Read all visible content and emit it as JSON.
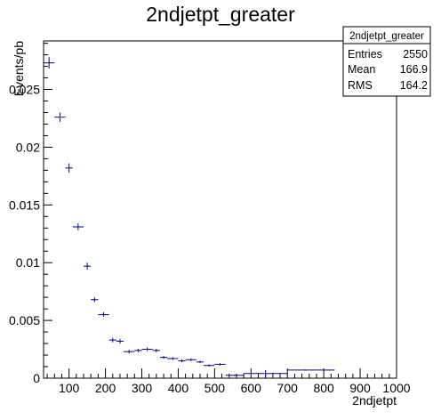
{
  "chart_data": {
    "type": "scatter",
    "title": "2ndjetpt_greater",
    "xlabel": "2ndjetpt",
    "ylabel": "Events/pb",
    "xlim": [
      30,
      1000
    ],
    "ylim": [
      0,
      0.0292
    ],
    "x_ticks": [
      100,
      200,
      300,
      400,
      500,
      600,
      700,
      800,
      900,
      1000
    ],
    "y_ticks": [
      0,
      0.005,
      0.01,
      0.015,
      0.02,
      0.025
    ],
    "x_tick_labels": [
      "100",
      "200",
      "300",
      "400",
      "500",
      "600",
      "700",
      "800",
      "900",
      "1000"
    ],
    "y_tick_labels": [
      "0",
      "0.005",
      "0.01",
      "0.015",
      "0.02",
      "0.025"
    ],
    "grid": false,
    "legend": "none",
    "series_color": "#00008b",
    "points": [
      {
        "x1": 30,
        "x2": 60,
        "y": 0.0273,
        "err": 0.0005
      },
      {
        "x1": 60,
        "x2": 90,
        "y": 0.0226,
        "err": 0.0004
      },
      {
        "x1": 90,
        "x2": 110,
        "y": 0.0182,
        "err": 0.0004
      },
      {
        "x1": 110,
        "x2": 140,
        "y": 0.0131,
        "err": 0.0003
      },
      {
        "x1": 140,
        "x2": 160,
        "y": 0.0097,
        "err": 0.0003
      },
      {
        "x1": 160,
        "x2": 180,
        "y": 0.0068,
        "err": 0.0002
      },
      {
        "x1": 180,
        "x2": 210,
        "y": 0.0055,
        "err": 0.0002
      },
      {
        "x1": 210,
        "x2": 230,
        "y": 0.0033,
        "err": 0.0002
      },
      {
        "x1": 230,
        "x2": 250,
        "y": 0.0032,
        "err": 0.0002
      },
      {
        "x1": 250,
        "x2": 280,
        "y": 0.0023,
        "err": 0.00015
      },
      {
        "x1": 280,
        "x2": 300,
        "y": 0.0024,
        "err": 0.00015
      },
      {
        "x1": 300,
        "x2": 330,
        "y": 0.0025,
        "err": 0.00015
      },
      {
        "x1": 330,
        "x2": 350,
        "y": 0.0024,
        "err": 0.00015
      },
      {
        "x1": 350,
        "x2": 370,
        "y": 0.0018,
        "err": 0.00012
      },
      {
        "x1": 370,
        "x2": 400,
        "y": 0.0017,
        "err": 0.00012
      },
      {
        "x1": 400,
        "x2": 420,
        "y": 0.0015,
        "err": 0.00012
      },
      {
        "x1": 420,
        "x2": 450,
        "y": 0.0016,
        "err": 0.00012
      },
      {
        "x1": 450,
        "x2": 470,
        "y": 0.0014,
        "err": 0.0001
      },
      {
        "x1": 470,
        "x2": 500,
        "y": 0.0011,
        "err": 0.0001
      },
      {
        "x1": 500,
        "x2": 530,
        "y": 0.0012,
        "err": 0.0001
      },
      {
        "x1": 530,
        "x2": 580,
        "y": 0.00025,
        "err": 6e-05
      },
      {
        "x1": 580,
        "x2": 700,
        "y": 0.0004,
        "err": 0.0003
      },
      {
        "x1": 700,
        "x2": 800,
        "y": 0.0007,
        "err": 5e-05
      },
      {
        "x1": 800,
        "x2": 830,
        "y": 0.0007,
        "err": 5e-05
      }
    ]
  },
  "stats_box": {
    "title": "2ndjetpt_greater",
    "rows": [
      {
        "label": "Entries",
        "value": "2550"
      },
      {
        "label": "Mean",
        "value": "166.9"
      },
      {
        "label": "RMS",
        "value": "164.2"
      }
    ]
  }
}
